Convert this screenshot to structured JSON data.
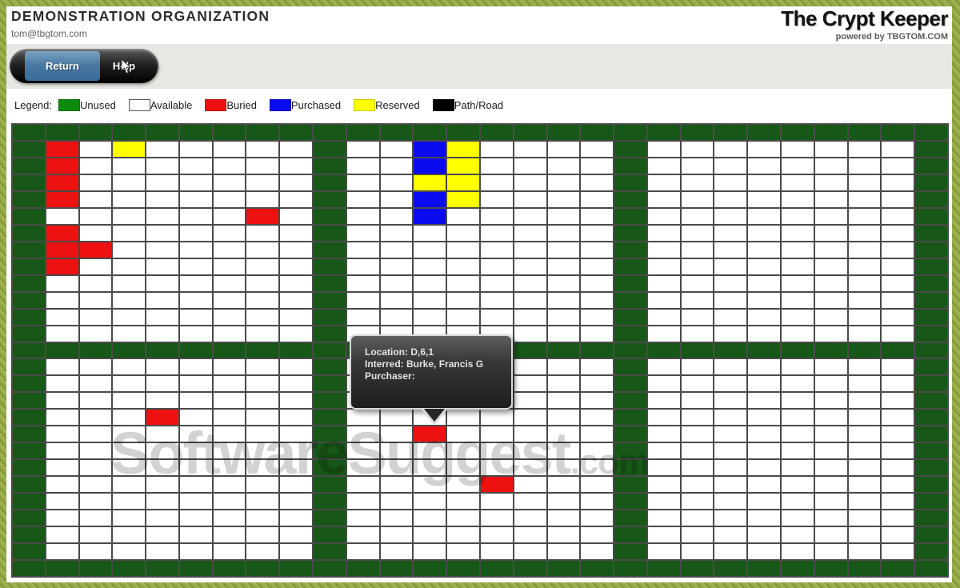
{
  "header": {
    "org_name": "DEMONSTRATION ORGANIZATION",
    "org_email": "tom@tbgtom.com",
    "product_name": "The Crypt Keeper",
    "product_tagline": "powered by TBGTOM.COM"
  },
  "toolbar": {
    "return_label": "Return",
    "help_label": "Help"
  },
  "legend": {
    "title": "Legend:",
    "items": [
      {
        "label": "Unused",
        "color": "#0c8a0c",
        "border": "#0a6b0a"
      },
      {
        "label": "Available",
        "color": "#ffffff",
        "border": "#555555"
      },
      {
        "label": "Buried",
        "color": "#ee1111",
        "border": "#c00d0d"
      },
      {
        "label": "Purchased",
        "color": "#0a0aee",
        "border": "#0808bb"
      },
      {
        "label": "Reserved",
        "color": "#ffff00",
        "border": "#cccc00"
      },
      {
        "label": "Path/Road",
        "color": "#000000",
        "border": "#000000"
      }
    ]
  },
  "tooltip": {
    "lines": [
      "Location: D,6,1",
      "Interred: Burke, Francis G",
      "Purchaser:"
    ]
  },
  "watermark": {
    "main": "SoftwareSuggest",
    "suffix": ".com"
  },
  "map": {
    "cols": 28,
    "rows": 27,
    "grid_line_color": "#4a4a4a",
    "cell_colors": {
      "unused": "#175717",
      "available": "#ffffff",
      "buried": "#ee1111",
      "purchased": "#0a0aee",
      "reserved": "#ffff00"
    },
    "path_cols": [
      0,
      9,
      18,
      27
    ],
    "path_rows": [
      0,
      13,
      26
    ],
    "plots": [
      {
        "col": 1,
        "row": 1,
        "status": "buried"
      },
      {
        "col": 1,
        "row": 2,
        "status": "buried"
      },
      {
        "col": 1,
        "row": 3,
        "status": "buried"
      },
      {
        "col": 1,
        "row": 4,
        "status": "buried"
      },
      {
        "col": 1,
        "row": 6,
        "status": "buried"
      },
      {
        "col": 1,
        "row": 7,
        "status": "buried"
      },
      {
        "col": 1,
        "row": 8,
        "status": "buried"
      },
      {
        "col": 2,
        "row": 7,
        "status": "buried"
      },
      {
        "col": 3,
        "row": 1,
        "status": "reserved"
      },
      {
        "col": 7,
        "row": 5,
        "status": "buried"
      },
      {
        "col": 12,
        "row": 1,
        "status": "purchased"
      },
      {
        "col": 12,
        "row": 2,
        "status": "purchased"
      },
      {
        "col": 12,
        "row": 3,
        "status": "reserved"
      },
      {
        "col": 12,
        "row": 4,
        "status": "purchased"
      },
      {
        "col": 12,
        "row": 5,
        "status": "purchased"
      },
      {
        "col": 13,
        "row": 1,
        "status": "reserved"
      },
      {
        "col": 13,
        "row": 2,
        "status": "reserved"
      },
      {
        "col": 13,
        "row": 3,
        "status": "reserved"
      },
      {
        "col": 13,
        "row": 4,
        "status": "reserved"
      },
      {
        "col": 4,
        "row": 17,
        "status": "buried"
      },
      {
        "col": 12,
        "row": 18,
        "status": "buried"
      },
      {
        "col": 14,
        "row": 21,
        "status": "buried"
      }
    ]
  }
}
